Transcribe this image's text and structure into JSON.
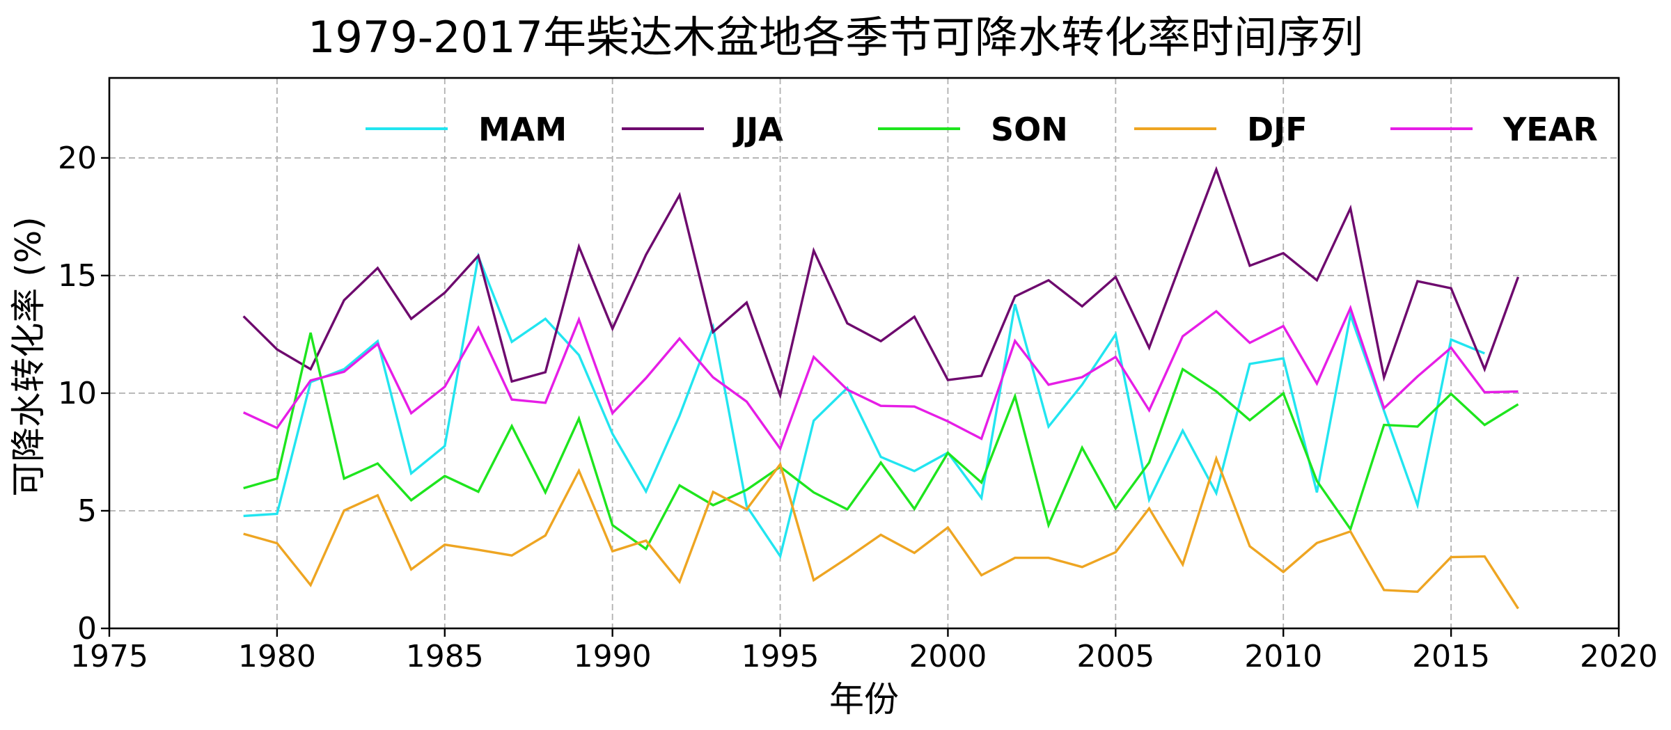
{
  "chart_data": {
    "type": "line",
    "title": "1979-2017年柴达木盆地各季节可降水转化率时间序列",
    "xlabel": "年份",
    "ylabel": "可降水转化率 (%)",
    "xlim": [
      1975,
      2020
    ],
    "ylim": [
      0,
      23.4
    ],
    "xticks": [
      1975,
      1980,
      1985,
      1990,
      1995,
      2000,
      2005,
      2010,
      2015,
      2020
    ],
    "yticks": [
      0,
      5,
      10,
      15,
      20
    ],
    "grid": true,
    "legend_position": "upper center (inside, single row)",
    "x": [
      1979,
      1980,
      1981,
      1982,
      1983,
      1984,
      1985,
      1986,
      1987,
      1988,
      1989,
      1990,
      1991,
      1992,
      1993,
      1994,
      1995,
      1996,
      1997,
      1998,
      1999,
      2000,
      2001,
      2002,
      2003,
      2004,
      2005,
      2006,
      2007,
      2008,
      2009,
      2010,
      2011,
      2012,
      2013,
      2014,
      2015,
      2016,
      2017
    ],
    "series": [
      {
        "name": "MAM",
        "color": "#22e5f0",
        "values": [
          4.78,
          4.87,
          10.47,
          11.02,
          12.21,
          6.59,
          7.75,
          15.81,
          12.18,
          13.16,
          11.62,
          8.27,
          5.82,
          9.04,
          12.81,
          5.2,
          3.07,
          8.83,
          10.22,
          7.29,
          6.69,
          7.47,
          5.54,
          13.78,
          8.58,
          10.36,
          12.5,
          5.47,
          8.41,
          5.75,
          11.24,
          11.48,
          5.78,
          13.32,
          9.25,
          5.24,
          12.28,
          11.69,
          null
        ]
      },
      {
        "name": "JJA",
        "color": "#6e0a6e",
        "values": [
          13.27,
          11.86,
          11.02,
          13.95,
          15.32,
          13.16,
          14.27,
          15.84,
          10.5,
          10.89,
          16.23,
          12.74,
          15.88,
          18.42,
          12.6,
          13.85,
          9.9,
          16.06,
          12.97,
          12.21,
          13.25,
          10.56,
          10.74,
          14.11,
          14.8,
          13.69,
          14.94,
          11.93,
          15.74,
          19.51,
          15.42,
          15.95,
          14.8,
          17.86,
          10.67,
          14.76,
          14.46,
          11.02,
          14.94
        ]
      },
      {
        "name": "SON",
        "color": "#1ee51e",
        "values": [
          5.96,
          6.37,
          12.57,
          6.37,
          7.01,
          5.45,
          6.48,
          5.81,
          8.6,
          5.78,
          8.92,
          4.39,
          3.38,
          6.08,
          5.24,
          5.89,
          6.87,
          5.78,
          5.06,
          7.05,
          5.08,
          7.46,
          6.2,
          9.87,
          4.39,
          7.68,
          5.1,
          7.05,
          11.02,
          10.08,
          8.85,
          9.99,
          6.27,
          4.22,
          8.65,
          8.58,
          9.97,
          8.65,
          9.53
        ]
      },
      {
        "name": "DJF",
        "color": "#eea522",
        "values": [
          4.02,
          3.62,
          1.84,
          5.01,
          5.66,
          2.51,
          3.56,
          3.34,
          3.1,
          3.95,
          6.7,
          3.28,
          3.73,
          1.98,
          5.8,
          5.06,
          6.98,
          2.05,
          2.99,
          3.98,
          3.21,
          4.29,
          2.26,
          3.0,
          3.0,
          2.61,
          3.24,
          5.1,
          2.72,
          7.22,
          3.49,
          2.4,
          3.63,
          4.12,
          1.63,
          1.56,
          3.03,
          3.06,
          0.84
        ]
      },
      {
        "name": "YEAR",
        "color": "#e61ee6",
        "values": [
          9.18,
          8.52,
          10.54,
          10.91,
          12.09,
          9.15,
          10.27,
          12.78,
          9.73,
          9.59,
          13.13,
          9.15,
          10.64,
          12.32,
          10.67,
          9.64,
          7.64,
          11.54,
          10.15,
          9.46,
          9.43,
          8.8,
          8.06,
          12.22,
          10.36,
          10.68,
          11.54,
          9.27,
          12.42,
          13.48,
          12.14,
          12.85,
          10.41,
          13.62,
          9.36,
          10.71,
          11.93,
          10.04,
          10.07
        ]
      }
    ]
  }
}
